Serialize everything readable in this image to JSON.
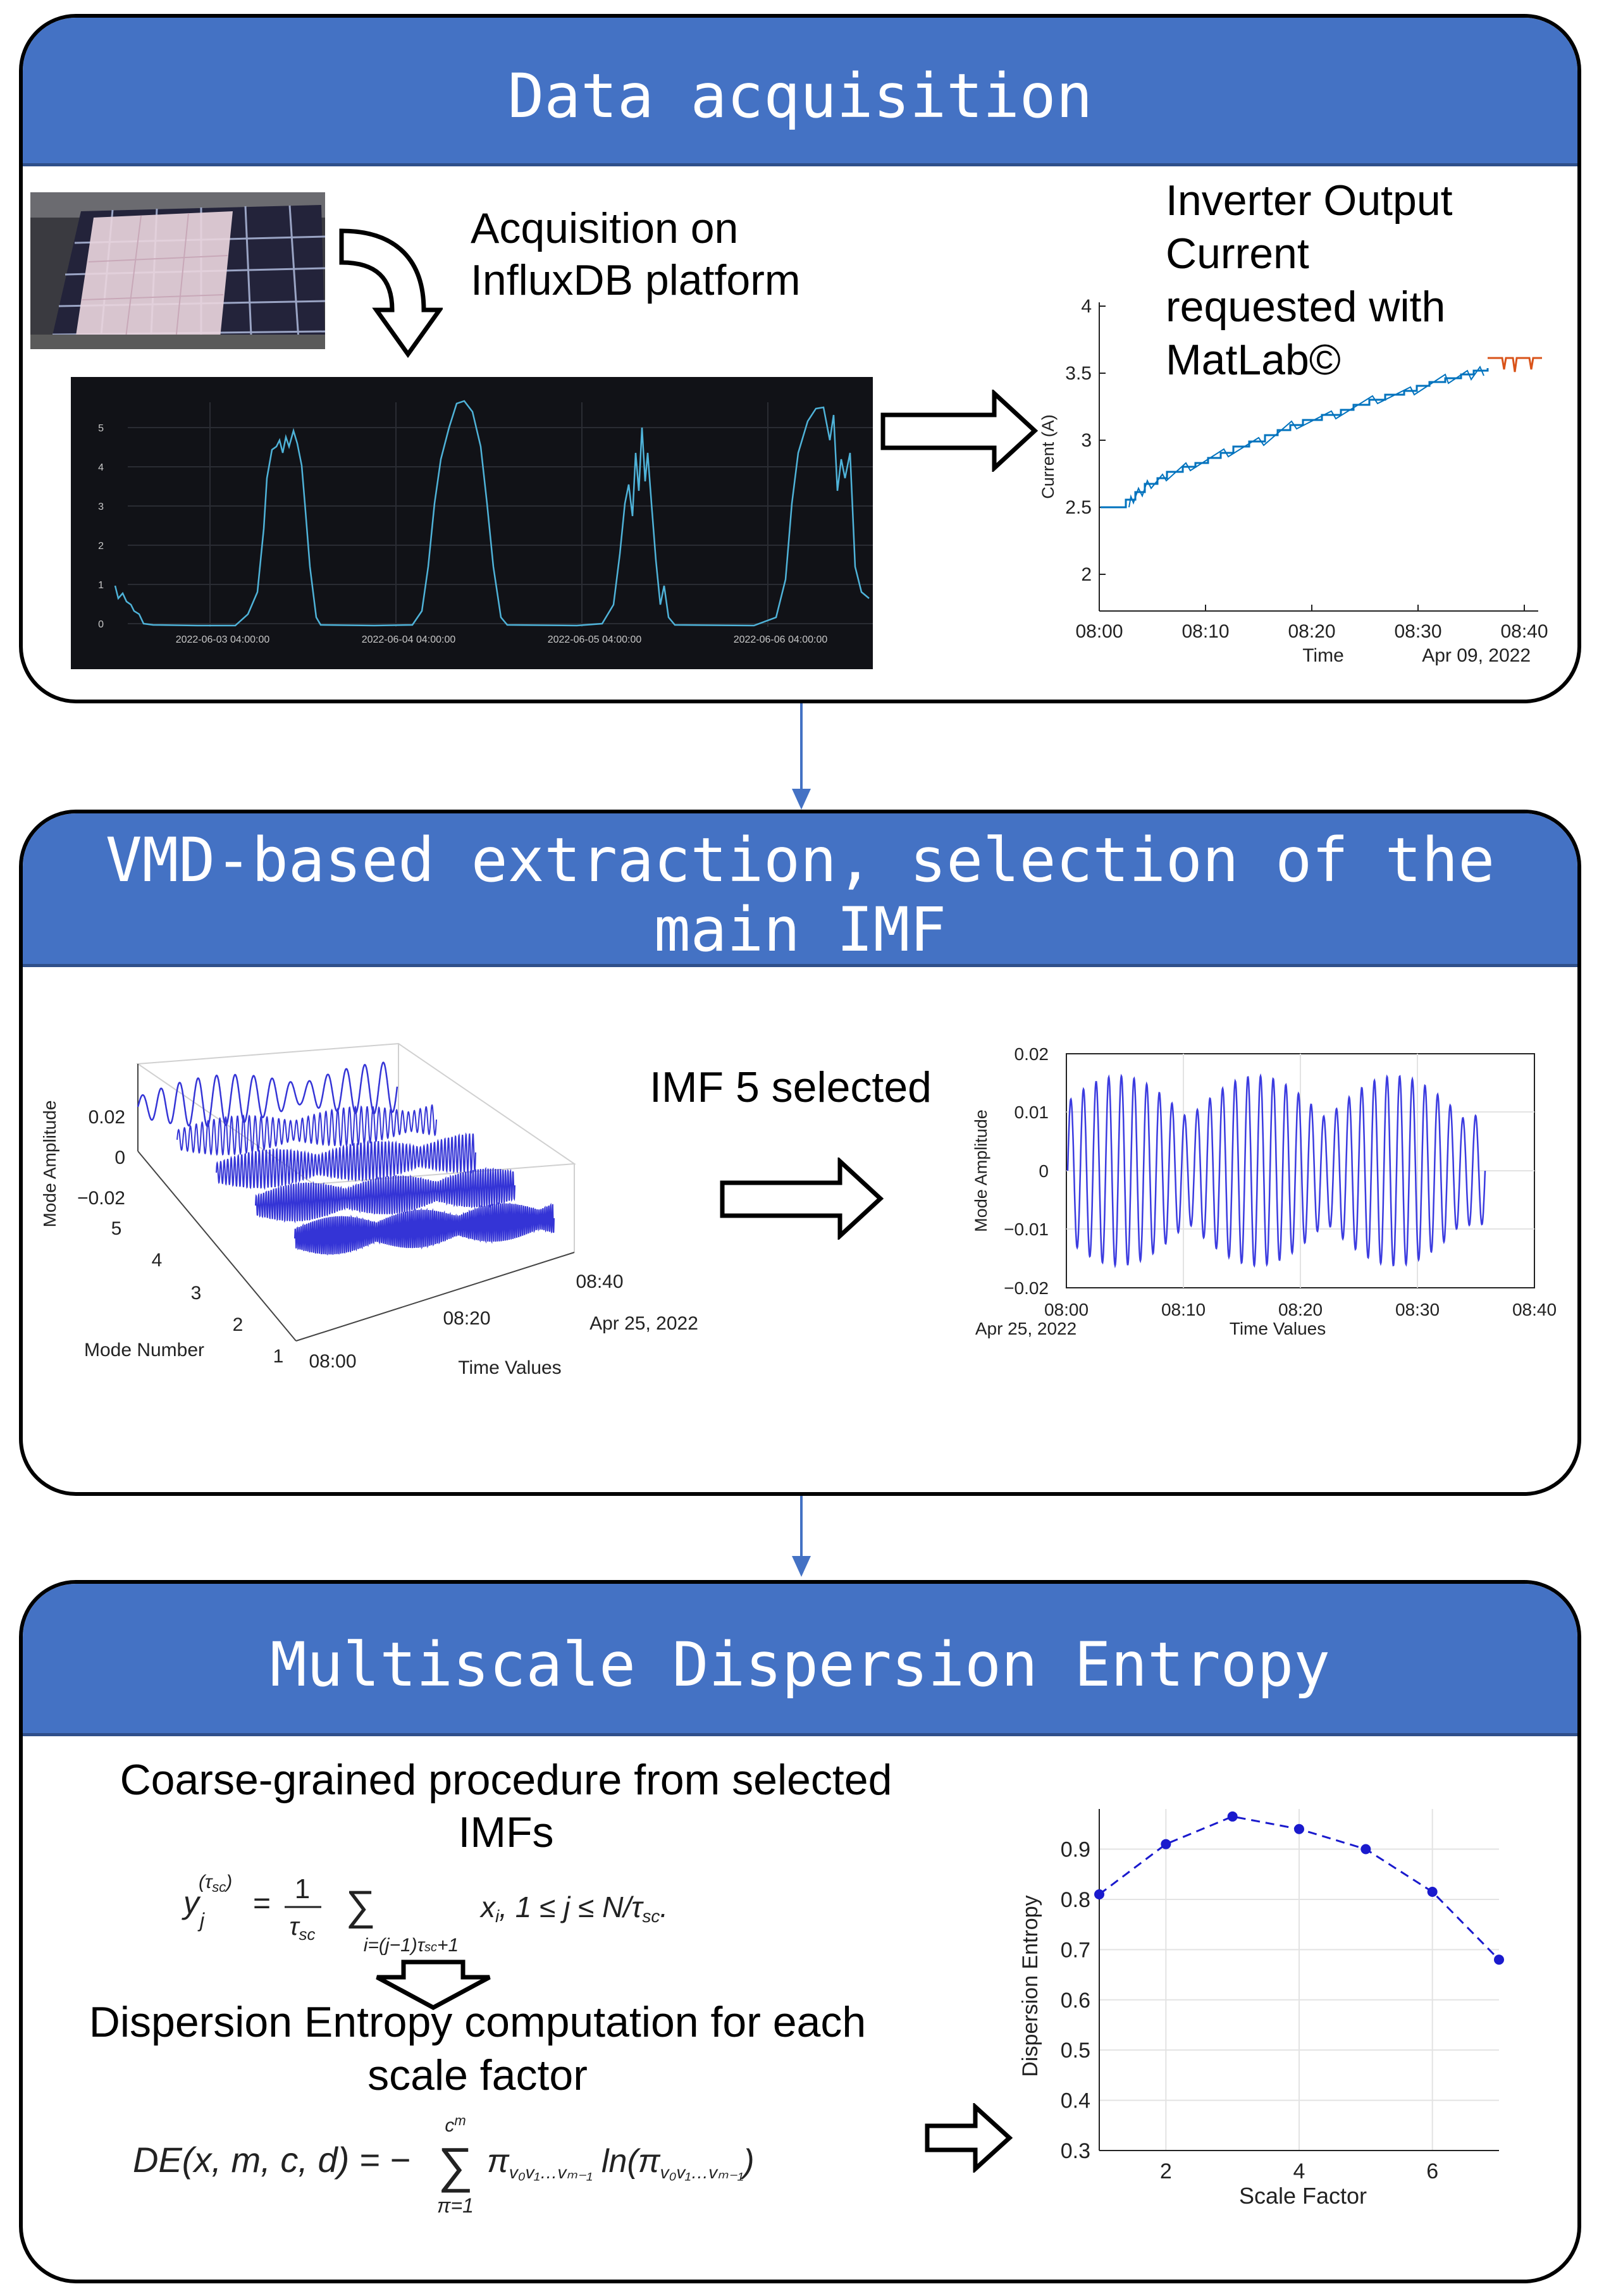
{
  "panel1": {
    "title": "Data acquisition",
    "acq_label_1": "Acquisition on",
    "acq_label_2": "InfluxDB platform",
    "dates": [
      "2022-06-03 04:00:00",
      "2022-06-04 04:00:00",
      "2022-06-05 04:00:00",
      "2022-06-06 04:00:00"
    ],
    "yticks": [
      "0",
      "1",
      "2",
      "3",
      "4",
      "5"
    ],
    "inverter_label": [
      "Inverter Output",
      "Current",
      "requested with",
      "MatLab©"
    ],
    "matlab_chart": {
      "ylabel": "Current (A)",
      "xlabel": "Time",
      "date": "Apr 09, 2022",
      "yticks": [
        "2",
        "2.5",
        "3",
        "3.5",
        "4"
      ],
      "xticks": [
        "08:00",
        "08:10",
        "08:20",
        "08:30",
        "08:40"
      ]
    }
  },
  "panel2": {
    "title_line1": "VMD-based extraction, selection of the",
    "title_line2": "main IMF",
    "imf_label": "IMF 5 selected",
    "plot3d": {
      "zlabel": "Mode Amplitude",
      "zticks": [
        "0.02",
        "0",
        "−0.02"
      ],
      "ylabel": "Mode Number",
      "yticks": [
        "5",
        "4",
        "3",
        "2",
        "1"
      ],
      "xlabel": "Time Values",
      "xticks": [
        "08:00",
        "08:20",
        "08:40"
      ],
      "date": "Apr 25, 2022"
    },
    "imf_chart": {
      "ylabel": "Mode Amplitude",
      "xlabel": "Time Values",
      "date": "Apr 25, 2022",
      "yticks": [
        "0.02",
        "0.01",
        "0",
        "−0.01",
        "−0.02"
      ],
      "xticks": [
        "08:00",
        "08:10",
        "08:20",
        "08:30",
        "08:40"
      ]
    }
  },
  "panel3": {
    "title": "Multiscale Dispersion Entropy",
    "coarse_label_1": "Coarse-grained procedure from selected",
    "coarse_label_2": "IMFs",
    "dispersion_label_1": "Dispersion Entropy computation for each",
    "dispersion_label_2": "scale factor"
  },
  "chart_data": {
    "type": "line",
    "title": "",
    "xlabel": "Scale Factor",
    "ylabel": "Dispersion Entropy",
    "x": [
      1,
      2,
      3,
      4,
      5,
      6,
      7
    ],
    "series": [
      {
        "name": "Dispersion Entropy",
        "values": [
          0.81,
          0.91,
          0.965,
          0.94,
          0.9,
          0.815,
          0.68
        ]
      }
    ],
    "xticks": [
      "2",
      "4",
      "6"
    ],
    "yticks": [
      "0.3",
      "0.4",
      "0.5",
      "0.6",
      "0.7",
      "0.8",
      "0.9"
    ],
    "xlim": [
      1,
      7
    ],
    "ylim": [
      0.3,
      0.98
    ],
    "grid": true
  },
  "colors": {
    "header_blue": "#4472c4",
    "influx_bg": "#111217",
    "influx_line": "#4fb3d9",
    "matlab_blue": "#0072bd",
    "matlab_orange": "#d95319",
    "imf_blue": "#3b3be0",
    "entropy_blue": "#1a1acd"
  }
}
